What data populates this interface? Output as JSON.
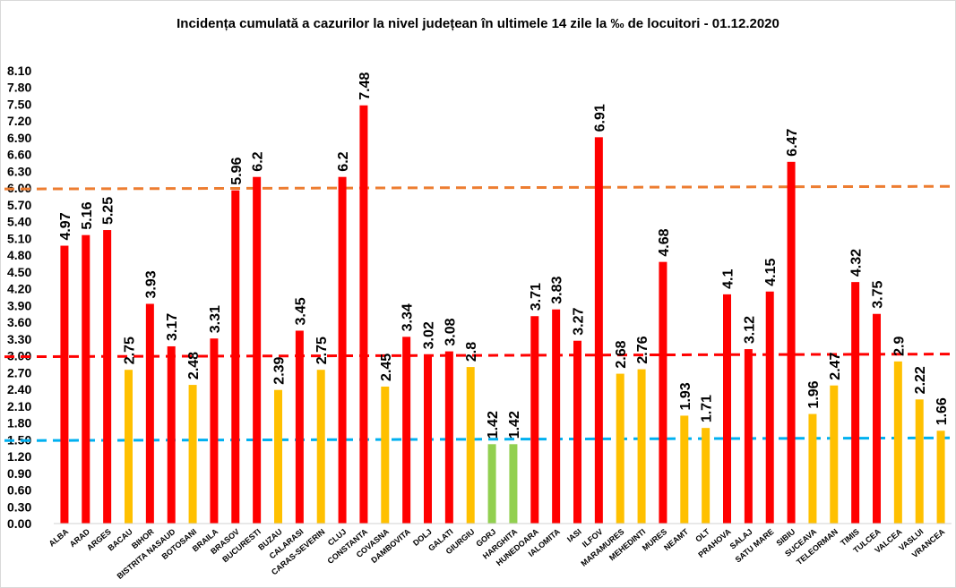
{
  "chart_data": {
    "type": "bar",
    "title": "Incidența cumulată a cazurilor la nivel județean în ultimele 14 zile la ‰ de locuitori - 01.12.2020",
    "xlabel": "",
    "ylabel": "",
    "ylim": [
      0,
      8.1
    ],
    "yticks": [
      "0.00",
      "0.30",
      "0.60",
      "0.90",
      "1.20",
      "1.50",
      "1.80",
      "2.10",
      "2.40",
      "2.70",
      "3.00",
      "3.30",
      "3.60",
      "3.90",
      "4.20",
      "4.50",
      "4.80",
      "5.10",
      "5.40",
      "5.70",
      "6.00",
      "6.30",
      "6.60",
      "6.90",
      "7.20",
      "7.50",
      "7.80",
      "8.10"
    ],
    "grid": false,
    "legend": "none",
    "categories": [
      "ALBA",
      "ARAD",
      "ARGES",
      "BACAU",
      "BIHOR",
      "BISTRITA NASAUD",
      "BOTOSANI",
      "BRAILA",
      "BRASOV",
      "BUCURESTI",
      "BUZAU",
      "CALARASI",
      "CARAS-SEVERIN",
      "CLUJ",
      "CONSTANTA",
      "COVASNA",
      "DAMBOVITA",
      "DOLJ",
      "GALATI",
      "GIURGIU",
      "GORJ",
      "HARGHITA",
      "HUNEDOARA",
      "IALOMITA",
      "IASI",
      "ILFOV",
      "MARAMURES",
      "MEHEDINTI",
      "MURES",
      "NEAMT",
      "OLT",
      "PRAHOVA",
      "SALAJ",
      "SATU MARE",
      "SIBIU",
      "SUCEAVA",
      "TELEORMAN",
      "TIMIS",
      "TULCEA",
      "VALCEA",
      "VASLUI",
      "VRANCEA"
    ],
    "values": [
      4.97,
      5.16,
      5.25,
      2.75,
      3.93,
      3.17,
      2.48,
      3.31,
      5.96,
      6.2,
      2.39,
      3.45,
      2.75,
      6.2,
      7.48,
      2.45,
      3.34,
      3.02,
      3.08,
      2.8,
      1.42,
      1.42,
      3.71,
      3.83,
      3.27,
      6.91,
      2.68,
      2.76,
      4.68,
      1.93,
      1.71,
      4.1,
      3.12,
      4.15,
      6.47,
      1.96,
      2.47,
      4.32,
      3.75,
      2.9,
      2.22,
      1.66
    ],
    "labels": [
      "4.97",
      "5.16",
      "5.25",
      "2.75",
      "3.93",
      "3.17",
      "2.48",
      "3.31",
      "5.96",
      "6.2",
      "2.39",
      "3.45",
      "2.75",
      "6.2",
      "7.48",
      "2.45",
      "3.34",
      "3.02",
      "3.08",
      "2.8",
      "1.42",
      "1.42",
      "3.71",
      "3.83",
      "3.27",
      "6.91",
      "2.68",
      "2.76",
      "4.68",
      "1.93",
      "1.71",
      "4.1",
      "3.12",
      "4.15",
      "6.47",
      "1.96",
      "2.47",
      "4.32",
      "3.75",
      "2.9",
      "2.22",
      "1.66"
    ],
    "colors": {
      "high": "#ff0000",
      "medium": "#ffc000",
      "low": "#92d050"
    },
    "reference_lines": [
      {
        "value": 6.0,
        "color": "#ed7d31"
      },
      {
        "value": 3.0,
        "color": "#ff0000"
      },
      {
        "value": 1.5,
        "color": "#00b0f0"
      }
    ]
  }
}
